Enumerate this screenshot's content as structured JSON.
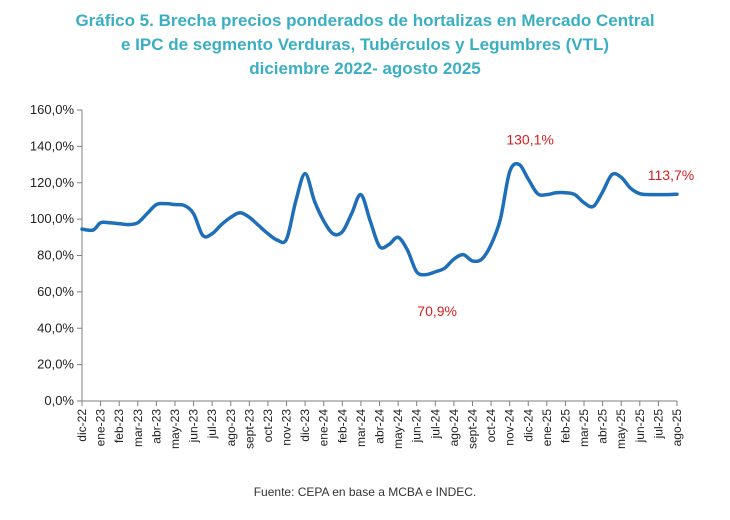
{
  "chart_data": {
    "type": "line",
    "title": [
      "Gráfico 5. Brecha precios ponderados de hortalizas en Mercado Central",
      "e IPC de segmento Verduras, Tubérculos y Legumbres (VTL)",
      "diciembre 2022- agosto 2025"
    ],
    "xlabel": "",
    "ylabel": "",
    "ylim": [
      0,
      160
    ],
    "yticks": [
      "0,0%",
      "20,0%",
      "40,0%",
      "60,0%",
      "80,0%",
      "100,0%",
      "120,0%",
      "140,0%",
      "160,0%"
    ],
    "categories": [
      "dic-22",
      "ene-23",
      "feb-23",
      "mar-23",
      "abr-23",
      "may-23",
      "jun-23",
      "jul-23",
      "ago-23",
      "sept-23",
      "oct-23",
      "nov-23",
      "dic-23",
      "ene-24",
      "feb-24",
      "mar-24",
      "abr-24",
      "may-24",
      "jun-24",
      "jul-24",
      "ago-24",
      "sept-24",
      "oct-24",
      "nov-24",
      "dic-24",
      "ene-25",
      "feb-25",
      "mar-25",
      "abr-25",
      "may-25",
      "jun-25",
      "jul-25",
      "ago-25"
    ],
    "series": [
      {
        "color": "#1F6FB8",
        "x": [
          0,
          0.6,
          1,
          1.5,
          2,
          2.5,
          3,
          3.5,
          4,
          4.5,
          5,
          5.5,
          6,
          6.5,
          7,
          7.5,
          8,
          8.5,
          9,
          9.5,
          10,
          10.5,
          11,
          11.5,
          12,
          12.5,
          13,
          13.5,
          14,
          14.5,
          15,
          15.5,
          16,
          16.5,
          17,
          17.5,
          18,
          18.5,
          19,
          19.5,
          20,
          20.5,
          21,
          21.5,
          22,
          22.5,
          23,
          23.5,
          24,
          24.5,
          25,
          25.5,
          26,
          26.5,
          27,
          27.5,
          28,
          28.5,
          29,
          29.5,
          30,
          30.5,
          31,
          31.5,
          32
        ],
        "values": [
          94.5,
          94,
          98,
          98,
          97.5,
          97,
          98,
          103,
          108,
          108.5,
          108,
          107.5,
          103,
          91,
          92,
          97,
          101,
          103.5,
          101,
          96.5,
          92,
          88.5,
          89,
          110,
          125,
          110,
          99,
          92,
          93,
          103,
          113.5,
          99,
          85,
          86,
          90,
          83,
          71,
          69.5,
          71,
          73,
          78,
          80.5,
          77,
          78,
          86,
          100,
          126,
          130.1,
          122,
          114,
          113.5,
          114.5,
          114.5,
          113.5,
          109,
          107,
          115,
          124.5,
          123,
          117,
          114,
          113.5,
          113.5,
          113.5,
          113.7
        ]
      }
    ],
    "annotations": [
      {
        "text": "130,1%",
        "x": 24.1,
        "y": 130.1,
        "color": "#D91E1E"
      },
      {
        "text": "70,9%",
        "x": 19.1,
        "y": 70.9,
        "color": "#D91E1E"
      },
      {
        "text": "113,7%",
        "x": 32,
        "y": 113.7,
        "color": "#D91E1E"
      }
    ],
    "grid": false,
    "legend": "none"
  },
  "source": "Fuente: CEPA en base a MCBA e INDEC."
}
